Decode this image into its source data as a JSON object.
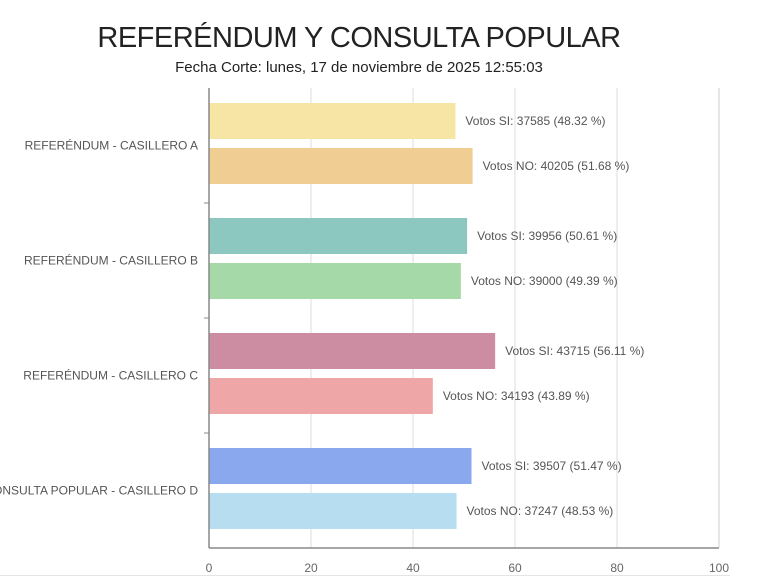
{
  "chart_data": {
    "type": "bar",
    "orientation": "horizontal",
    "title": "REFERÉNDUM Y CONSULTA POPULAR",
    "subtitle": "Fecha Corte: lunes, 17 de noviembre de 2025 12:55:03",
    "categories": [
      "REFERÉNDUM - CASILLERO A",
      "REFERÉNDUM - CASILLERO B",
      "REFERÉNDUM - CASILLERO C",
      "CONSULTA POPULAR - CASILLERO D"
    ],
    "xlim": [
      0,
      100
    ],
    "xticks": [
      0,
      20,
      40,
      60,
      80,
      100
    ],
    "grid": true,
    "bars": [
      {
        "category": 0,
        "value": 48.32,
        "label": "Votos SI: 37585 (48.32 %)",
        "color": "#f6e5a5"
      },
      {
        "category": 0,
        "value": 51.68,
        "label": "Votos NO: 40205 (51.68 %)",
        "color": "#f0cd92"
      },
      {
        "category": 1,
        "value": 50.61,
        "label": "Votos SI: 39956 (50.61 %)",
        "color": "#8cc7c0"
      },
      {
        "category": 1,
        "value": 49.39,
        "label": "Votos NO: 39000 (49.39 %)",
        "color": "#a6d9a8"
      },
      {
        "category": 2,
        "value": 56.11,
        "label": "Votos SI: 43715 (56.11 %)",
        "color": "#cc8da3"
      },
      {
        "category": 2,
        "value": 43.89,
        "label": "Votos NO: 34193 (43.89 %)",
        "color": "#efa6a6"
      },
      {
        "category": 3,
        "value": 51.47,
        "label": "Votos SI: 39507 (51.47 %)",
        "color": "#8aa8ee"
      },
      {
        "category": 3,
        "value": 48.53,
        "label": "Votos NO: 37247 (48.53 %)",
        "color": "#b7ddf0"
      }
    ]
  }
}
